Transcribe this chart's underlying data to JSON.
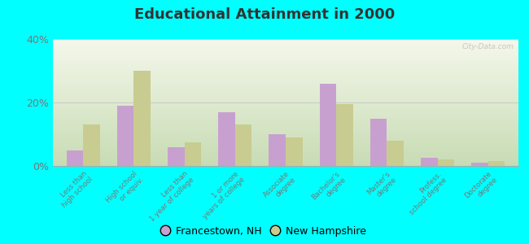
{
  "title": "Educational Attainment in 2000",
  "categories": [
    "Less than\nhigh school",
    "High school\nor equiv.",
    "Less than\n1 year of college",
    "1 or more\nyears of college",
    "Associate\ndegree",
    "Bachelor's\ndegree",
    "Master's\ndegree",
    "Profess.\nschool degree",
    "Doctorate\ndegree"
  ],
  "francestown": [
    5,
    19,
    6,
    17,
    10,
    26,
    15,
    2.5,
    1.0
  ],
  "new_hampshire": [
    13,
    30,
    7.5,
    13,
    9,
    19.5,
    8,
    2,
    1.5
  ],
  "francestown_color": "#c8a0d0",
  "new_hampshire_color": "#c8cc90",
  "ylim": [
    0,
    40
  ],
  "yticks": [
    0,
    20,
    40
  ],
  "ytick_labels": [
    "0%",
    "20%",
    "40%"
  ],
  "legend_labels": [
    "Francestown, NH",
    "New Hampshire"
  ],
  "watermark": "City-Data.com",
  "figure_bg": "#00ffff",
  "plot_bg_top": "#f5f8ec",
  "plot_bg_bottom": "#d8e8c8"
}
